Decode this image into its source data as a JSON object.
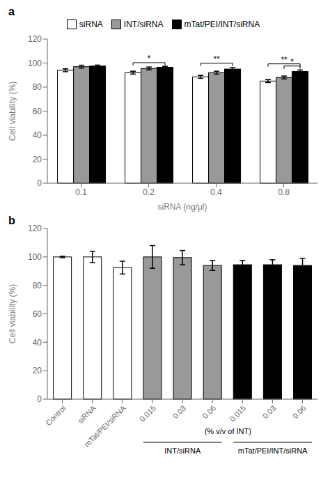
{
  "chart_data": [
    {
      "type": "bar",
      "title": "a",
      "categories": [
        "0.1",
        "0.2",
        "0.4",
        "0.8"
      ],
      "xlabel": "siRNA (ng/μl)",
      "ylabel": "Cell viability (%)",
      "ylim": [
        0,
        120
      ],
      "yticks": [
        0,
        20,
        40,
        60,
        80,
        100,
        120
      ],
      "legend": "top",
      "series": [
        {
          "name": "siRNA",
          "color": "#ffffff",
          "values": [
            94.0,
            92.0,
            88.5,
            85.0
          ],
          "errors": [
            1.2,
            1.2,
            1.2,
            1.2
          ]
        },
        {
          "name": "INT/siRNA",
          "color": "#999999",
          "values": [
            97.0,
            95.5,
            92.0,
            88.0
          ],
          "errors": [
            1.2,
            1.2,
            1.2,
            1.2
          ]
        },
        {
          "name": "mTat/PEI/INT/siRNA",
          "color": "#000000",
          "values": [
            97.5,
            96.5,
            95.0,
            93.0
          ],
          "errors": [
            0.8,
            0.8,
            1.2,
            1.2
          ]
        }
      ],
      "annotations": [
        {
          "text": "*",
          "category": "0.2",
          "from": "siRNA",
          "to": "mTat/PEI/INT/siRNA",
          "y": 98.0,
          "line_style": "solid"
        },
        {
          "text": "**",
          "category": "0.4",
          "from": "siRNA",
          "to": "mTat/PEI/INT/siRNA",
          "y": 97.5,
          "line_style": "solid"
        },
        {
          "text": "**",
          "category": "0.8",
          "from": "siRNA",
          "to": "mTat/PEI/INT/siRNA",
          "y": 97.0,
          "line_style": "solid"
        },
        {
          "text": "*",
          "category": "0.8",
          "from": "INT/siRNA",
          "to": "mTat/PEI/INT/siRNA",
          "y": 95.2,
          "line_style": "solid"
        }
      ]
    },
    {
      "type": "bar",
      "title": "b",
      "categories": [
        "Control",
        "siRNA",
        "mTat/PEI/siRNA",
        "0.015",
        "0.03",
        "0.06",
        "0.015",
        "0.03",
        "0.06"
      ],
      "ylabel": "Cell viability (%)",
      "ylim": [
        0,
        120
      ],
      "yticks": [
        0,
        20,
        40,
        60,
        80,
        100,
        120
      ],
      "values": [
        100.0,
        100.0,
        92.5,
        100.0,
        99.5,
        94.0,
        94.5,
        94.5,
        94.0
      ],
      "errors": [
        0.5,
        4.0,
        4.5,
        8.0,
        5.0,
        3.5,
        3.0,
        3.5,
        5.0
      ],
      "colors": [
        "#ffffff",
        "#ffffff",
        "#ffffff",
        "#999999",
        "#999999",
        "#999999",
        "#000000",
        "#000000",
        "#000000"
      ],
      "annotations": [
        {
          "text": "(% v/v of INT)",
          "from": 3,
          "to": 8
        },
        {
          "text": "INT/siRNA",
          "from": 3,
          "to": 5,
          "line_style": "solid"
        },
        {
          "text": "mTat/PEI/INT/siRNA",
          "from": 6,
          "to": 8,
          "line_style": "solid"
        }
      ]
    }
  ]
}
